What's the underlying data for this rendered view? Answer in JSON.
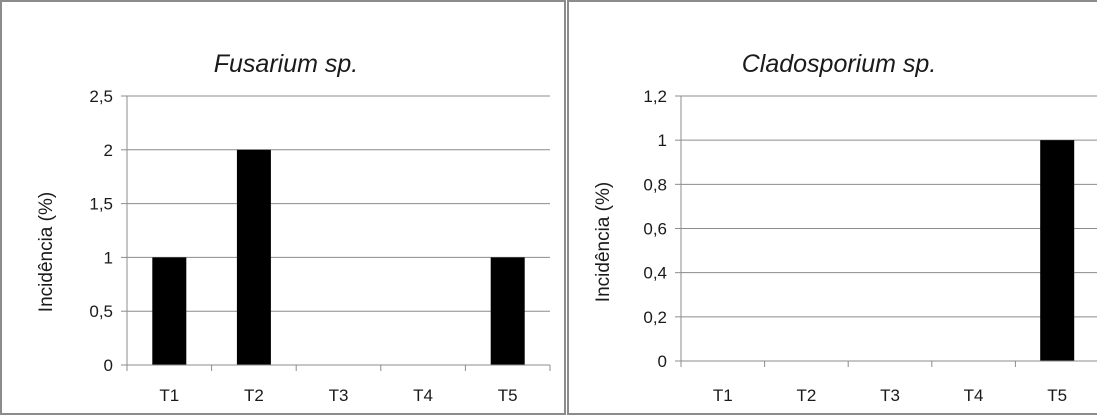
{
  "chart_data": [
    {
      "type": "bar",
      "title": "Fusarium sp.",
      "ylabel": "Incidência (%)",
      "xlabel": "",
      "categories": [
        "T1",
        "T2",
        "T3",
        "T4",
        "T5"
      ],
      "values": [
        1,
        2,
        0,
        0,
        1
      ],
      "ylim": [
        0,
        2.5
      ],
      "yticks": [
        "0",
        "0,5",
        "1",
        "1,5",
        "2",
        "2,5"
      ],
      "grid": true,
      "bar_color": "#000000",
      "grid_color": "#8c8c8c"
    },
    {
      "type": "bar",
      "title": "Cladosporium sp.",
      "ylabel": "Incidência (%)",
      "xlabel": "",
      "categories": [
        "T1",
        "T2",
        "T3",
        "T4",
        "T5"
      ],
      "values": [
        0,
        0,
        0,
        0,
        1
      ],
      "ylim": [
        0,
        1.2
      ],
      "yticks": [
        "0",
        "0,2",
        "0,4",
        "0,6",
        "0,8",
        "1",
        "1,2"
      ],
      "grid": true,
      "bar_color": "#000000",
      "grid_color": "#8c8c8c"
    }
  ]
}
